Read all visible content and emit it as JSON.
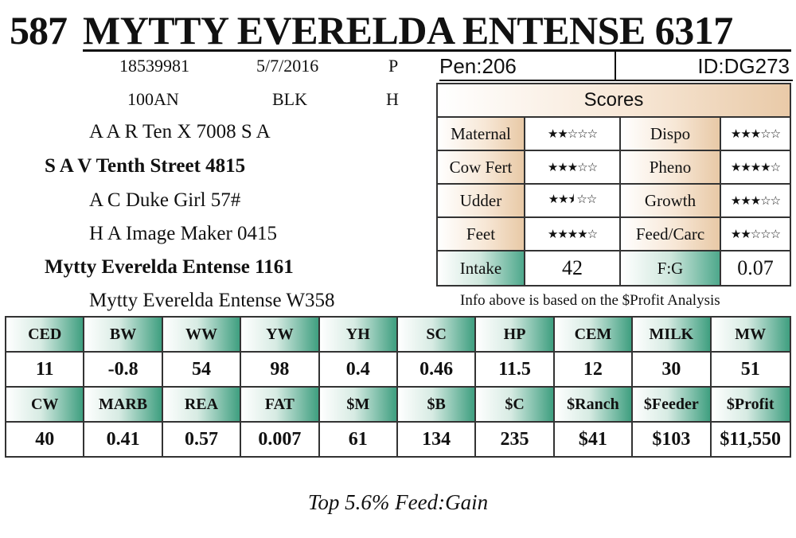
{
  "header": {
    "lot_number": "587",
    "animal_name": "MYTTY EVERELDA ENTENSE 6317"
  },
  "info": {
    "registration": "18539981",
    "birth_date": "5/7/2016",
    "code_p": "P",
    "tattoo": "100AN",
    "color": "BLK",
    "code_h": "H"
  },
  "pedigree": {
    "sire_sire": "A A R Ten X 7008 S A",
    "sire": "S A V Tenth Street 4815",
    "sire_dam": "A C Duke Girl 57#",
    "dam_sire": "H A Image Maker 0415",
    "dam": "Mytty Everelda Entense 1161",
    "dam_dam": "Mytty Everelda Entense W358"
  },
  "pen": "Pen:206",
  "animal_id": "ID:DG273",
  "scores": {
    "title": "Scores",
    "rows": [
      {
        "l1": "Maternal",
        "v1": "★★☆☆☆",
        "l2": "Dispo",
        "v2": "★★★☆☆"
      },
      {
        "l1": "Cow Fert",
        "v1": "★★★☆☆",
        "l2": "Pheno",
        "v2": "★★★★☆"
      },
      {
        "l1": "Udder",
        "v1": "★★⯨ ☆☆",
        "l2": "Growth",
        "v2": "★★★☆☆"
      },
      {
        "l1": "Feet",
        "v1": "★★★★☆",
        "l2": "Feed/Carc",
        "v2": "★★☆☆☆"
      },
      {
        "l1": "Intake",
        "v1": "42",
        "l2": "F:G",
        "v2": "0.07"
      }
    ]
  },
  "note": "Info above is based on the $Profit Analysis",
  "epd": {
    "row1_headers": [
      "CED",
      "BW",
      "WW",
      "YW",
      "YH",
      "SC",
      "HP",
      "CEM",
      "MILK",
      "MW"
    ],
    "row1_values": [
      "11",
      "-0.8",
      "54",
      "98",
      "0.4",
      "0.46",
      "11.5",
      "12",
      "30",
      "51"
    ],
    "row2_headers": [
      "CW",
      "MARB",
      "REA",
      "FAT",
      "$M",
      "$B",
      "$C",
      "$Ranch",
      "$Feeder",
      "$Profit"
    ],
    "row2_values": [
      "40",
      "0.41",
      "0.57",
      "0.007",
      "61",
      "134",
      "235",
      "$41",
      "$103",
      "$11,550"
    ]
  },
  "footer": "Top 5.6% Feed:Gain"
}
